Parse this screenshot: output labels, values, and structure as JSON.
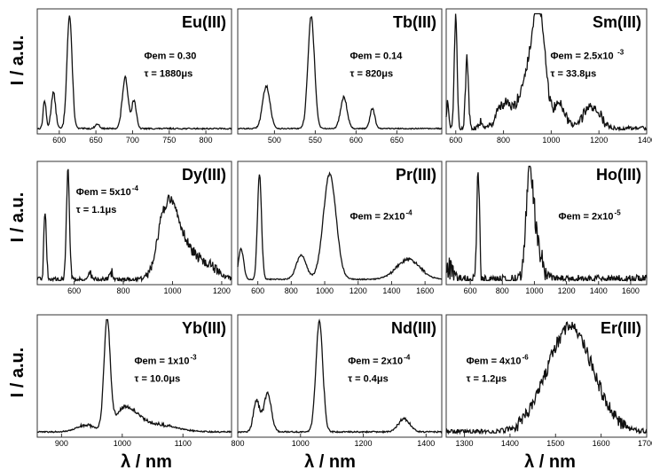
{
  "figure": {
    "ylabel": "I / a.u.",
    "xlabel": "λ / nm",
    "colors": {
      "line": "#111111",
      "frame": "#333333",
      "background": "#ffffff"
    }
  },
  "chart_data": [
    {
      "type": "line",
      "title": "Eu(III)",
      "annotations": [
        "Φem = 0.30",
        "τ = 1880μs"
      ],
      "xlim": [
        570,
        835
      ],
      "xticks": [
        600,
        650,
        700,
        750,
        800
      ],
      "ylim": [
        0,
        1
      ],
      "peaks": [
        [
          580,
          0.25,
          2
        ],
        [
          592,
          0.32,
          3
        ],
        [
          614,
          1.0,
          3.5
        ],
        [
          652,
          0.04,
          3
        ],
        [
          690,
          0.45,
          4
        ],
        [
          702,
          0.25,
          3
        ]
      ],
      "noise": 0.006
    },
    {
      "type": "line",
      "title": "Tb(III)",
      "annotations": [
        "Φem = 0.14",
        "τ = 820μs"
      ],
      "xlim": [
        455,
        705
      ],
      "xticks": [
        500,
        550,
        600,
        650
      ],
      "ylim": [
        0,
        1
      ],
      "peaks": [
        [
          490,
          0.38,
          4.5
        ],
        [
          545,
          1.0,
          4
        ],
        [
          585,
          0.28,
          4
        ],
        [
          620,
          0.18,
          3
        ]
      ],
      "noise": 0.005
    },
    {
      "type": "line",
      "title": "Sm(III)",
      "annotations": [
        "Φem = 2.5x10",
        "-3",
        "τ = 33.8μs"
      ],
      "xlim": [
        560,
        1400
      ],
      "xticks": [
        600,
        800,
        1000,
        1200,
        1400
      ],
      "ylim": [
        0,
        1
      ],
      "peaks": [
        [
          566,
          0.25,
          5
        ],
        [
          600,
          1.0,
          6
        ],
        [
          647,
          0.62,
          6
        ],
        [
          705,
          0.07,
          8
        ],
        [
          800,
          0.22,
          30
        ],
        [
          900,
          0.45,
          35
        ],
        [
          950,
          0.95,
          25
        ],
        [
          1035,
          0.22,
          25
        ],
        [
          1170,
          0.2,
          35
        ]
      ],
      "noise": 0.02
    },
    {
      "type": "line",
      "title": "Dy(III)",
      "annotations": [
        "Φem = 5x10",
        "-4",
        "τ = 1.1μs"
      ],
      "xlim": [
        450,
        1240
      ],
      "xticks": [
        600,
        800,
        1000,
        1200
      ],
      "ylim": [
        0,
        1
      ],
      "peaks": [
        [
          482,
          0.62,
          5
        ],
        [
          575,
          1.0,
          6
        ],
        [
          665,
          0.07,
          6
        ],
        [
          750,
          0.07,
          6
        ],
        [
          960,
          0.35,
          30
        ],
        [
          1000,
          0.45,
          35
        ],
        [
          1050,
          0.2,
          40
        ],
        [
          1130,
          0.14,
          45
        ]
      ],
      "noise": 0.02
    },
    {
      "type": "line",
      "title": "Pr(III)",
      "annotations": [
        "Φem = 2x10",
        "-4"
      ],
      "xlim": [
        480,
        1700
      ],
      "xticks": [
        600,
        800,
        1000,
        1200,
        1400,
        1600
      ],
      "ylim": [
        0,
        1
      ],
      "peaks": [
        [
          500,
          0.28,
          15
        ],
        [
          610,
          0.95,
          12
        ],
        [
          860,
          0.22,
          30
        ],
        [
          1030,
          0.95,
          38
        ],
        [
          1500,
          0.18,
          70
        ]
      ],
      "noise": 0.005
    },
    {
      "type": "line",
      "title": "Ho(III)",
      "annotations": [
        "Φem = 2x10",
        "-5"
      ],
      "xlim": [
        450,
        1700
      ],
      "xticks": [
        600,
        800,
        1000,
        1200,
        1400,
        1600
      ],
      "ylim": [
        0,
        1
      ],
      "peaks": [
        [
          470,
          0.1,
          25
        ],
        [
          650,
          1.0,
          8
        ],
        [
          970,
          0.75,
          22
        ],
        [
          1000,
          0.35,
          40
        ]
      ],
      "noise": 0.04
    },
    {
      "type": "line",
      "title": "Yb(III)",
      "annotations": [
        "Φem = 1x10",
        "-3",
        "τ = 10.0μs"
      ],
      "xlim": [
        860,
        1180
      ],
      "xticks": [
        900,
        1000,
        1100
      ],
      "ylim": [
        0,
        1
      ],
      "peaks": [
        [
          940,
          0.06,
          15
        ],
        [
          975,
          1.0,
          5
        ],
        [
          1000,
          0.12,
          15
        ],
        [
          1015,
          0.12,
          20
        ],
        [
          1060,
          0.06,
          30
        ]
      ],
      "noise": 0.006
    },
    {
      "type": "line",
      "title": "Nd(III)",
      "annotations": [
        "Φem = 2x10",
        "-4",
        "τ = 0.4μs"
      ],
      "xlim": [
        800,
        1450
      ],
      "xticks": [
        800,
        1000,
        1200,
        1400
      ],
      "ylim": [
        0,
        1
      ],
      "peaks": [
        [
          860,
          0.28,
          10
        ],
        [
          895,
          0.35,
          12
        ],
        [
          1060,
          1.0,
          11
        ],
        [
          1330,
          0.12,
          18
        ]
      ],
      "noise": 0.006
    },
    {
      "type": "line",
      "title": "Er(III)",
      "annotations": [
        "Φem = 4x10",
        "-6",
        "τ = 1.2μs"
      ],
      "xlim": [
        1260,
        1700
      ],
      "xticks": [
        1300,
        1400,
        1500,
        1600,
        1700
      ],
      "ylim": [
        0,
        1
      ],
      "peaks": [
        [
          1532,
          0.95,
          50
        ]
      ],
      "noise": 0.025
    }
  ]
}
